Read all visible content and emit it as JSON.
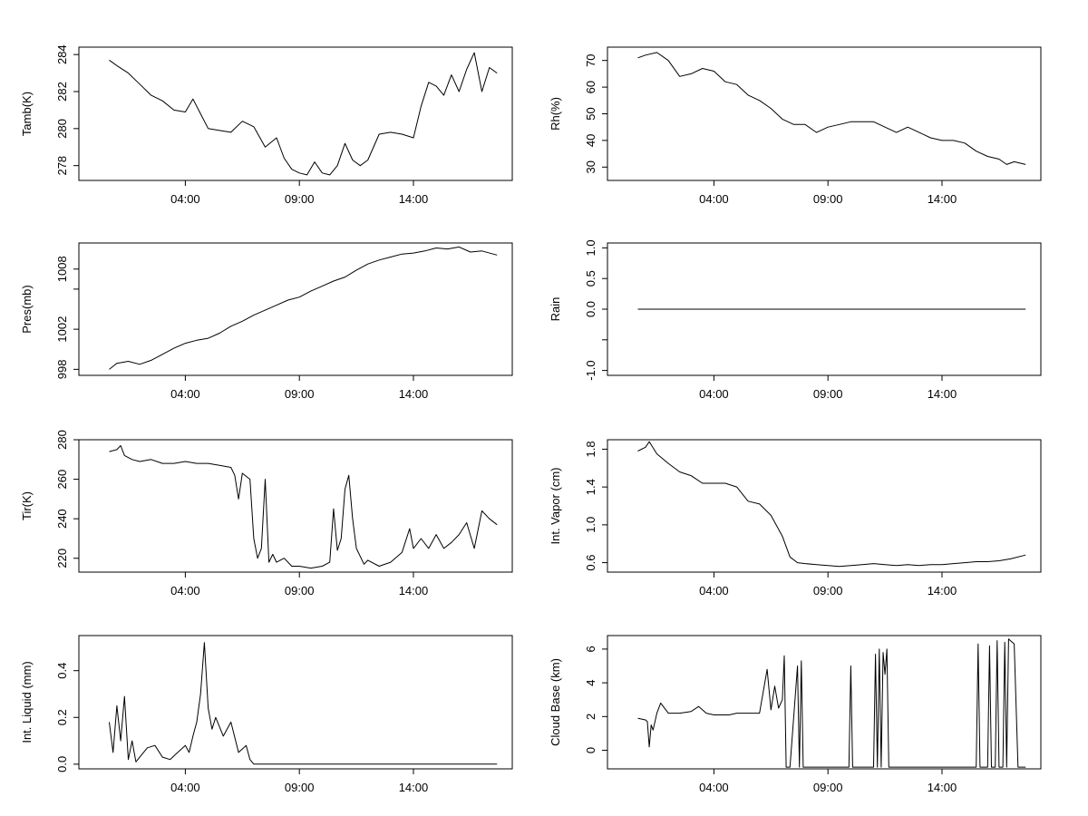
{
  "x_ticks": [
    "04:00",
    "09:00",
    "14:00"
  ],
  "chart_data": [
    {
      "type": "line",
      "ylabel": "Tamb(K)",
      "xticks": [
        "04:00",
        "09:00",
        "14:00"
      ],
      "yticks": [
        278,
        280,
        282,
        284
      ],
      "xlim": [
        "-0:40",
        "18:20"
      ],
      "ylim": [
        277.2,
        284.4
      ],
      "series": [
        {
          "x": [
            "00:40",
            "01:00",
            "01:30",
            "02:00",
            "02:30",
            "03:00",
            "03:30",
            "04:00",
            "04:20",
            "04:40",
            "05:00",
            "05:30",
            "06:00",
            "06:30",
            "07:00",
            "07:30",
            "08:00",
            "08:20",
            "08:40",
            "09:00",
            "09:20",
            "09:40",
            "10:00",
            "10:20",
            "10:40",
            "11:00",
            "11:20",
            "11:40",
            "12:00",
            "12:30",
            "13:00",
            "13:30",
            "14:00",
            "14:20",
            "14:40",
            "15:00",
            "15:20",
            "15:40",
            "16:00",
            "16:20",
            "16:40",
            "17:00",
            "17:20",
            "17:40"
          ],
          "values": [
            283.7,
            283.4,
            283.0,
            282.4,
            281.8,
            281.5,
            281.0,
            280.9,
            281.6,
            280.8,
            280.0,
            279.9,
            279.8,
            280.4,
            280.1,
            279.0,
            279.5,
            278.4,
            277.8,
            277.6,
            277.5,
            278.2,
            277.6,
            277.5,
            278.0,
            279.2,
            278.3,
            278.0,
            278.3,
            279.7,
            279.8,
            279.7,
            279.5,
            281.2,
            282.5,
            282.3,
            281.8,
            282.9,
            282.0,
            283.2,
            284.1,
            282.0,
            283.3,
            283.0
          ]
        }
      ]
    },
    {
      "type": "line",
      "ylabel": "Rh(%)",
      "xticks": [
        "04:00",
        "09:00",
        "14:00"
      ],
      "yticks": [
        30,
        40,
        50,
        60,
        70
      ],
      "xlim": [
        "-0:40",
        "18:20"
      ],
      "ylim": [
        25,
        75
      ],
      "series": [
        {
          "x": [
            "00:40",
            "01:00",
            "01:30",
            "02:00",
            "02:30",
            "03:00",
            "03:30",
            "04:00",
            "04:30",
            "05:00",
            "05:30",
            "06:00",
            "06:30",
            "07:00",
            "07:30",
            "08:00",
            "08:30",
            "09:00",
            "09:30",
            "10:00",
            "10:30",
            "11:00",
            "11:30",
            "12:00",
            "12:30",
            "13:00",
            "13:30",
            "14:00",
            "14:30",
            "15:00",
            "15:30",
            "16:00",
            "16:30",
            "16:50",
            "17:10",
            "17:40"
          ],
          "values": [
            71,
            72,
            73,
            70,
            64,
            65,
            67,
            66,
            62,
            61,
            57,
            55,
            52,
            48,
            46,
            46,
            43,
            45,
            46,
            47,
            47,
            47,
            45,
            43,
            45,
            43,
            41,
            40,
            40,
            39,
            36,
            34,
            33,
            31,
            32,
            31
          ]
        }
      ]
    },
    {
      "type": "line",
      "ylabel": "Pres(mb)",
      "xticks": [
        "04:00",
        "09:00",
        "14:00"
      ],
      "yticks": [
        998,
        1002,
        1008
      ],
      "ytick_values": [
        998,
        1002,
        1006,
        1008
      ],
      "xlim": [
        "-0:40",
        "18:20"
      ],
      "ylim": [
        997.4,
        1010.6
      ],
      "series": [
        {
          "x": [
            "00:40",
            "01:00",
            "01:30",
            "02:00",
            "02:30",
            "03:00",
            "03:30",
            "04:00",
            "04:30",
            "05:00",
            "05:30",
            "06:00",
            "06:30",
            "07:00",
            "07:30",
            "08:00",
            "08:30",
            "09:00",
            "09:30",
            "10:00",
            "10:30",
            "11:00",
            "11:30",
            "12:00",
            "12:30",
            "13:00",
            "13:30",
            "14:00",
            "14:30",
            "15:00",
            "15:30",
            "16:00",
            "16:30",
            "17:00",
            "17:40"
          ],
          "values": [
            998.0,
            998.6,
            998.8,
            998.5,
            998.9,
            999.5,
            1000.1,
            1000.6,
            1000.9,
            1001.1,
            1001.6,
            1002.3,
            1002.8,
            1003.4,
            1003.9,
            1004.4,
            1004.9,
            1005.2,
            1005.8,
            1006.3,
            1006.8,
            1007.2,
            1007.9,
            1008.5,
            1008.9,
            1009.2,
            1009.5,
            1009.6,
            1009.8,
            1010.1,
            1010.0,
            1010.2,
            1009.7,
            1009.8,
            1009.4
          ]
        }
      ]
    },
    {
      "type": "line",
      "ylabel": "Rain",
      "xticks": [
        "04:00",
        "09:00",
        "14:00"
      ],
      "yticks": [
        "-1.0",
        "0.0",
        "0.5",
        "1.0"
      ],
      "ytick_values": [
        -1.0,
        -0.5,
        0.0,
        0.5,
        1.0
      ],
      "xlim": [
        "-0:40",
        "18:20"
      ],
      "ylim": [
        -1.08,
        1.08
      ],
      "series": [
        {
          "x": [
            "00:40",
            "17:40"
          ],
          "values": [
            0,
            0
          ]
        }
      ]
    },
    {
      "type": "line",
      "ylabel": "Tir(K)",
      "xticks": [
        "04:00",
        "09:00",
        "14:00"
      ],
      "yticks": [
        220,
        240,
        260,
        280
      ],
      "xlim": [
        "-0:40",
        "18:20"
      ],
      "ylim": [
        213,
        280
      ],
      "series": [
        {
          "x": [
            "00:40",
            "01:00",
            "01:10",
            "01:20",
            "01:40",
            "02:00",
            "02:30",
            "03:00",
            "03:30",
            "04:00",
            "04:30",
            "05:00",
            "05:30",
            "06:00",
            "06:10",
            "06:20",
            "06:30",
            "06:50",
            "07:00",
            "07:10",
            "07:20",
            "07:30",
            "07:40",
            "07:50",
            "08:00",
            "08:20",
            "08:40",
            "09:00",
            "09:30",
            "10:00",
            "10:20",
            "10:30",
            "10:40",
            "10:50",
            "11:00",
            "11:10",
            "11:20",
            "11:30",
            "11:50",
            "12:00",
            "12:30",
            "13:00",
            "13:30",
            "13:50",
            "14:00",
            "14:20",
            "14:40",
            "15:00",
            "15:20",
            "15:40",
            "16:00",
            "16:20",
            "16:40",
            "17:00",
            "17:20",
            "17:40"
          ],
          "values": [
            274,
            275,
            277,
            272,
            270,
            269,
            270,
            268,
            268,
            269,
            268,
            268,
            267,
            266,
            262,
            250,
            263,
            260,
            230,
            220,
            225,
            260,
            218,
            222,
            218,
            220,
            216,
            216,
            215,
            216,
            218,
            245,
            224,
            230,
            255,
            262,
            240,
            225,
            217,
            219,
            216,
            218,
            223,
            235,
            225,
            230,
            225,
            232,
            225,
            228,
            232,
            238,
            225,
            244,
            240,
            237
          ]
        }
      ]
    },
    {
      "type": "line",
      "ylabel": "Int. Vapor (cm)",
      "xticks": [
        "04:00",
        "09:00",
        "14:00"
      ],
      "yticks": [
        "0.6",
        "1.0",
        "1.4",
        "1.8"
      ],
      "ytick_values": [
        0.6,
        1.0,
        1.4,
        1.8
      ],
      "xlim": [
        "-0:40",
        "18:20"
      ],
      "ylim": [
        0.5,
        1.9
      ],
      "series": [
        {
          "x": [
            "00:40",
            "01:00",
            "01:10",
            "01:30",
            "02:00",
            "02:30",
            "03:00",
            "03:30",
            "04:00",
            "04:30",
            "05:00",
            "05:30",
            "06:00",
            "06:30",
            "07:00",
            "07:20",
            "07:40",
            "08:00",
            "08:30",
            "09:00",
            "09:30",
            "10:00",
            "10:30",
            "11:00",
            "11:30",
            "12:00",
            "12:30",
            "13:00",
            "13:30",
            "14:00",
            "14:30",
            "15:00",
            "15:30",
            "16:00",
            "16:30",
            "17:00",
            "17:40"
          ],
          "values": [
            1.78,
            1.82,
            1.88,
            1.75,
            1.65,
            1.56,
            1.52,
            1.44,
            1.44,
            1.44,
            1.4,
            1.25,
            1.22,
            1.1,
            0.88,
            0.66,
            0.6,
            0.59,
            0.58,
            0.57,
            0.56,
            0.57,
            0.58,
            0.59,
            0.58,
            0.57,
            0.58,
            0.57,
            0.58,
            0.58,
            0.59,
            0.6,
            0.61,
            0.61,
            0.62,
            0.64,
            0.68
          ]
        }
      ]
    },
    {
      "type": "line",
      "ylabel": "Int. Liquid (mm)",
      "xticks": [
        "04:00",
        "09:00",
        "14:00"
      ],
      "yticks": [
        "0.0",
        "0.2",
        "0.4"
      ],
      "ytick_values": [
        0.0,
        0.2,
        0.4
      ],
      "xlim": [
        "-0:40",
        "18:20"
      ],
      "ylim": [
        -0.02,
        0.55
      ],
      "series": [
        {
          "x": [
            "00:40",
            "00:50",
            "01:00",
            "01:10",
            "01:20",
            "01:30",
            "01:40",
            "01:50",
            "02:00",
            "02:20",
            "02:40",
            "03:00",
            "03:20",
            "03:40",
            "04:00",
            "04:10",
            "04:20",
            "04:30",
            "04:40",
            "04:50",
            "05:00",
            "05:10",
            "05:20",
            "05:40",
            "06:00",
            "06:20",
            "06:40",
            "06:50",
            "07:00",
            "07:20",
            "08:00",
            "09:00",
            "10:00",
            "11:00",
            "12:00",
            "13:00",
            "14:00",
            "15:00",
            "16:00",
            "17:00",
            "17:40"
          ],
          "values": [
            0.18,
            0.05,
            0.25,
            0.1,
            0.29,
            0.02,
            0.1,
            0.01,
            0.03,
            0.07,
            0.08,
            0.03,
            0.02,
            0.05,
            0.08,
            0.05,
            0.12,
            0.18,
            0.3,
            0.52,
            0.24,
            0.15,
            0.2,
            0.12,
            0.18,
            0.05,
            0.08,
            0.02,
            0.0,
            0.0,
            0.0,
            0.0,
            0.0,
            0.0,
            0.0,
            0.0,
            0.0,
            0.0,
            0.0,
            0.0,
            0.0
          ]
        }
      ]
    },
    {
      "type": "line",
      "ylabel": "Cloud Base (km)",
      "xticks": [
        "04:00",
        "09:00",
        "14:00"
      ],
      "yticks": [
        0,
        2,
        4,
        6
      ],
      "xlim": [
        "-0:40",
        "18:20"
      ],
      "ylim": [
        -1.1,
        6.8
      ],
      "series": [
        {
          "x": [
            "00:40",
            "01:00",
            "01:05",
            "01:10",
            "01:15",
            "01:20",
            "01:30",
            "01:40",
            "02:00",
            "02:30",
            "03:00",
            "03:20",
            "03:40",
            "04:00",
            "04:20",
            "04:40",
            "05:00",
            "05:30",
            "06:00",
            "06:20",
            "06:30",
            "06:40",
            "06:50",
            "07:00",
            "07:05",
            "07:10",
            "07:20",
            "07:40",
            "07:45",
            "07:50",
            "07:55",
            "08:00",
            "08:10",
            "09:00",
            "09:55",
            "10:00",
            "10:05",
            "11:00",
            "11:05",
            "11:10",
            "11:15",
            "11:20",
            "11:25",
            "11:30",
            "11:35",
            "11:40",
            "12:00",
            "13:00",
            "14:00",
            "15:00",
            "15:30",
            "15:35",
            "15:40",
            "16:00",
            "16:05",
            "16:10",
            "16:20",
            "16:25",
            "16:30",
            "16:40",
            "16:45",
            "16:50",
            "16:55",
            "17:00",
            "17:10",
            "17:20",
            "17:40"
          ],
          "values": [
            1.9,
            1.8,
            1.7,
            0.2,
            1.5,
            1.2,
            2.2,
            2.8,
            2.2,
            2.2,
            2.3,
            2.6,
            2.2,
            2.1,
            2.1,
            2.1,
            2.2,
            2.2,
            2.2,
            4.8,
            2.4,
            3.8,
            2.5,
            3.0,
            5.6,
            -1.0,
            -1.0,
            5.0,
            -1.0,
            5.3,
            -1.0,
            -1.0,
            -1.0,
            -1.0,
            -1.0,
            5.0,
            -1.0,
            -1.0,
            5.7,
            -1.0,
            6.0,
            -1.0,
            5.8,
            4.5,
            6.0,
            -1.0,
            -1.0,
            -1.0,
            -1.0,
            -1.0,
            -1.0,
            6.3,
            -1.0,
            -1.0,
            6.2,
            -1.0,
            -1.0,
            6.5,
            -1.0,
            -1.0,
            6.4,
            -1.0,
            6.6,
            6.5,
            6.3,
            -1.0,
            -1.0
          ]
        }
      ]
    }
  ]
}
